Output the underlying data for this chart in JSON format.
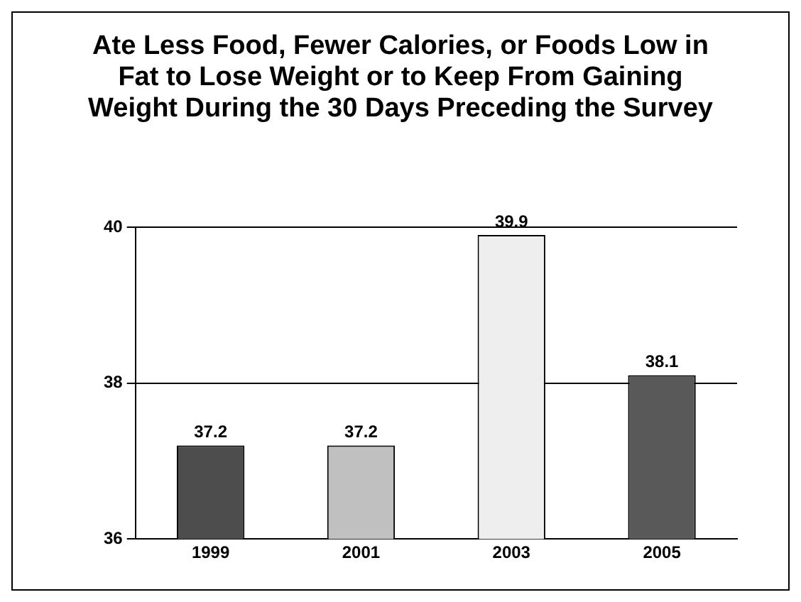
{
  "chart_data": {
    "type": "bar",
    "title": "Ate Less Food, Fewer Calories, or Foods Low in Fat to Lose Weight or to Keep From Gaining Weight During the 30 Days Preceding the Survey",
    "categories": [
      "1999",
      "2001",
      "2003",
      "2005"
    ],
    "values": [
      37.2,
      37.2,
      39.9,
      38.1
    ],
    "colors": [
      "#4d4d4d",
      "#c0c0c0",
      "#eeeeee",
      "#595959"
    ],
    "ylim": [
      36,
      40
    ],
    "yticks": [
      36,
      38,
      40
    ],
    "grid": "y",
    "data_labels": true
  }
}
